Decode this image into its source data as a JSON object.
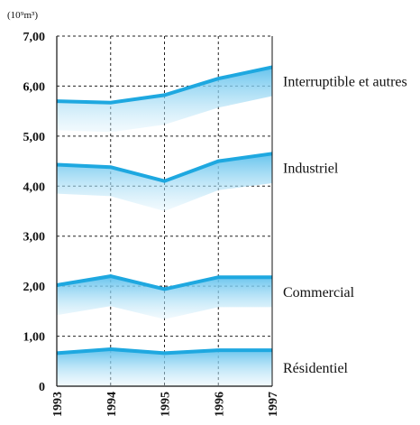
{
  "chart_data": {
    "type": "area",
    "unit_label": "(10⁹m³)",
    "x": [
      "1993",
      "1994",
      "1995",
      "1996",
      "1997"
    ],
    "y_ticks": [
      "0",
      "1,00",
      "2,00",
      "3,00",
      "4,00",
      "5,00",
      "6,00",
      "7,00"
    ],
    "ylim": [
      0,
      7
    ],
    "grid": true,
    "line_color": "#1ea8e0",
    "band_color": "#9fd8f3",
    "series": [
      {
        "name": "Résidentiel",
        "values": [
          0.66,
          0.74,
          0.66,
          0.72,
          0.72
        ],
        "lower": [
          0.0,
          0.0,
          0.0,
          0.0,
          0.0
        ]
      },
      {
        "name": "Commercial",
        "values": [
          2.02,
          2.2,
          1.94,
          2.18,
          2.18
        ],
        "lower": [
          1.42,
          1.6,
          1.34,
          1.58,
          1.58
        ]
      },
      {
        "name": "Industriel",
        "values": [
          4.43,
          4.38,
          4.1,
          4.5,
          4.65
        ],
        "lower": [
          3.85,
          3.8,
          3.5,
          3.92,
          4.06
        ]
      },
      {
        "name": "Interruptible et autres",
        "values": [
          5.7,
          5.67,
          5.82,
          6.15,
          6.38
        ],
        "lower": [
          5.12,
          5.08,
          5.23,
          5.57,
          5.8
        ]
      }
    ]
  }
}
